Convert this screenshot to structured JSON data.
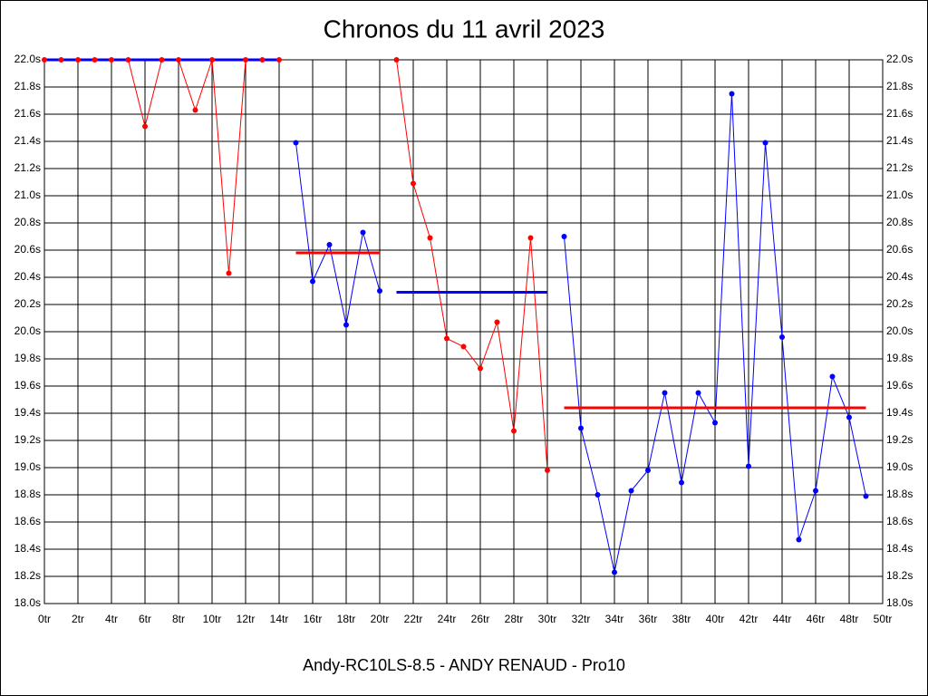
{
  "chart_data": {
    "type": "line",
    "title": "Chronos du 11 avril 2023",
    "footer": "Andy-RC10LS-8.5 - ANDY RENAUD - Pro10",
    "xlim": [
      0,
      50
    ],
    "xticks": [
      {
        "value": 0,
        "label": "0tr"
      },
      {
        "value": 2,
        "label": "2tr"
      },
      {
        "value": 4,
        "label": "4tr"
      },
      {
        "value": 6,
        "label": "6tr"
      },
      {
        "value": 8,
        "label": "8tr"
      },
      {
        "value": 10,
        "label": "10tr"
      },
      {
        "value": 12,
        "label": "12tr"
      },
      {
        "value": 14,
        "label": "14tr"
      },
      {
        "value": 16,
        "label": "16tr"
      },
      {
        "value": 18,
        "label": "18tr"
      },
      {
        "value": 20,
        "label": "20tr"
      },
      {
        "value": 22,
        "label": "22tr"
      },
      {
        "value": 24,
        "label": "24tr"
      },
      {
        "value": 26,
        "label": "26tr"
      },
      {
        "value": 28,
        "label": "28tr"
      },
      {
        "value": 30,
        "label": "30tr"
      },
      {
        "value": 32,
        "label": "32tr"
      },
      {
        "value": 34,
        "label": "34tr"
      },
      {
        "value": 36,
        "label": "36tr"
      },
      {
        "value": 38,
        "label": "38tr"
      },
      {
        "value": 40,
        "label": "40tr"
      },
      {
        "value": 42,
        "label": "42tr"
      },
      {
        "value": 44,
        "label": "44tr"
      },
      {
        "value": 46,
        "label": "46tr"
      },
      {
        "value": 48,
        "label": "48tr"
      },
      {
        "value": 50,
        "label": "50tr"
      }
    ],
    "ylim": [
      18.0,
      22.0
    ],
    "yticks": [
      {
        "value": 18.0,
        "label": "18.0s"
      },
      {
        "value": 18.2,
        "label": "18.2s"
      },
      {
        "value": 18.4,
        "label": "18.4s"
      },
      {
        "value": 18.6,
        "label": "18.6s"
      },
      {
        "value": 18.8,
        "label": "18.8s"
      },
      {
        "value": 19.0,
        "label": "19.0s"
      },
      {
        "value": 19.2,
        "label": "19.2s"
      },
      {
        "value": 19.4,
        "label": "19.4s"
      },
      {
        "value": 19.6,
        "label": "19.6s"
      },
      {
        "value": 19.8,
        "label": "19.8s"
      },
      {
        "value": 20.0,
        "label": "20.0s"
      },
      {
        "value": 20.2,
        "label": "20.2s"
      },
      {
        "value": 20.4,
        "label": "20.4s"
      },
      {
        "value": 20.6,
        "label": "20.6s"
      },
      {
        "value": 20.8,
        "label": "20.8s"
      },
      {
        "value": 21.0,
        "label": "21.0s"
      },
      {
        "value": 21.2,
        "label": "21.2s"
      },
      {
        "value": 21.4,
        "label": "21.4s"
      },
      {
        "value": 21.6,
        "label": "21.6s"
      },
      {
        "value": 21.8,
        "label": "21.8s"
      },
      {
        "value": 22.0,
        "label": "22.0s"
      }
    ],
    "grid": true,
    "series": [
      {
        "color": "#ff0000",
        "x": [
          0,
          1,
          2,
          3,
          4,
          5,
          6,
          7,
          8,
          9,
          10,
          11,
          12,
          13,
          14
        ],
        "values": [
          22.0,
          22.0,
          22.0,
          22.0,
          22.0,
          22.0,
          21.51,
          22.0,
          22.0,
          21.63,
          22.0,
          20.43,
          22.0,
          22.0,
          22.0
        ]
      },
      {
        "color": "#0000ff",
        "x": [
          15,
          16,
          17,
          18,
          19,
          20
        ],
        "values": [
          21.39,
          20.37,
          20.64,
          20.05,
          20.73,
          20.3
        ]
      },
      {
        "color": "#ff0000",
        "x": [
          21,
          22,
          23,
          24,
          25,
          26,
          27,
          28,
          29,
          30
        ],
        "values": [
          22.0,
          21.09,
          20.69,
          19.95,
          19.89,
          19.73,
          20.07,
          19.27,
          20.69,
          18.98
        ]
      },
      {
        "color": "#0000ff",
        "x": [
          31,
          32,
          33,
          34,
          35,
          36,
          37,
          38,
          39,
          40,
          41,
          42,
          43,
          44,
          45,
          46,
          47,
          48,
          49
        ],
        "values": [
          20.7,
          19.29,
          18.8,
          18.23,
          18.83,
          18.98,
          19.55,
          18.89,
          19.55,
          19.33,
          21.75,
          19.01,
          21.39,
          19.96,
          18.47,
          18.83,
          19.67,
          19.37,
          18.79
        ]
      }
    ],
    "averages": [
      {
        "color": "#0000ff",
        "x": [
          0,
          14
        ],
        "value": 22.0
      },
      {
        "color": "#ff0000",
        "x": [
          15,
          20
        ],
        "value": 20.58
      },
      {
        "color": "#0000ff",
        "x": [
          21,
          30
        ],
        "value": 20.29
      },
      {
        "color": "#ff0000",
        "x": [
          31,
          49
        ],
        "value": 19.44
      }
    ]
  }
}
